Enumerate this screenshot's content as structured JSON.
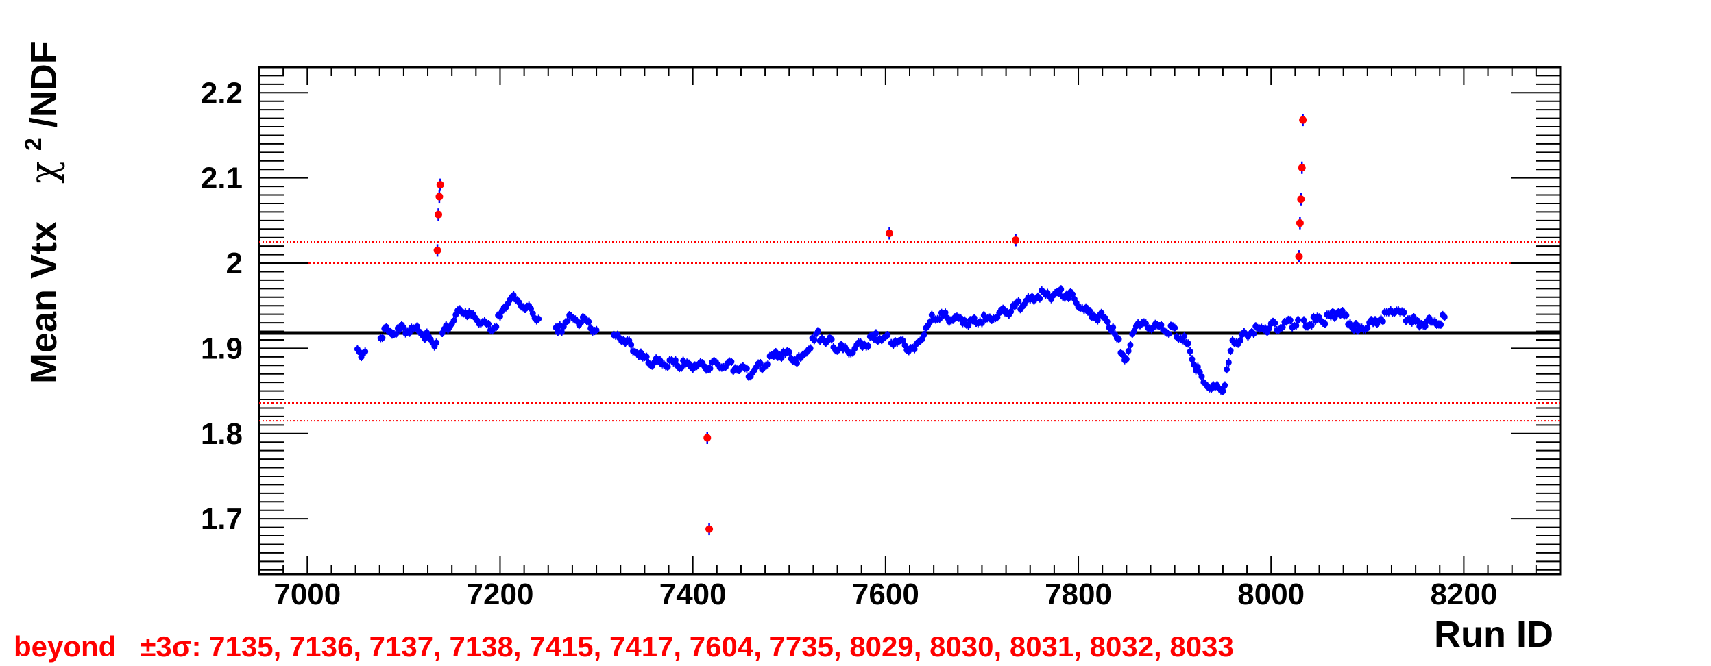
{
  "chart_data": {
    "type": "scatter",
    "xlabel": "Run ID",
    "ylabel_main": "Mean Vtx",
    "ylabel_chi": "χ",
    "ylabel_sup": "2",
    "ylabel_rest": "/NDF",
    "xlim": [
      6950,
      8300
    ],
    "ylim": [
      1.635,
      2.23
    ],
    "xticks": [
      7000,
      7200,
      7400,
      7600,
      7800,
      8000,
      8200
    ],
    "xtick_labels": [
      "7000",
      "7200",
      "7400",
      "7600",
      "7800",
      "8000",
      "8200"
    ],
    "yticks": [
      1.7,
      1.8,
      1.9,
      2.0,
      2.1,
      2.2
    ],
    "ytick_labels": [
      "1.7",
      "1.8",
      "1.9",
      "2",
      "2.1",
      "2.2"
    ],
    "mean_line": 1.918,
    "sigma3_lines": [
      1.836,
      2.0
    ],
    "outer_lines": [
      1.815,
      2.025
    ],
    "colors": {
      "points": "#0000ff",
      "outliers": "#ff0000",
      "mean": "#000000",
      "limits": "#ff0000"
    },
    "anchors": [
      [
        7052,
        1.897
      ],
      [
        7055,
        1.893
      ],
      [
        7080,
        1.92
      ],
      [
        7100,
        1.922
      ],
      [
        7120,
        1.92
      ],
      [
        7130,
        1.905
      ],
      [
        7150,
        1.93
      ],
      [
        7160,
        1.945
      ],
      [
        7180,
        1.932
      ],
      [
        7190,
        1.925
      ],
      [
        7200,
        1.935
      ],
      [
        7210,
        1.958
      ],
      [
        7220,
        1.955
      ],
      [
        7240,
        1.935
      ],
      [
        7260,
        1.918
      ],
      [
        7270,
        1.935
      ],
      [
        7290,
        1.93
      ],
      [
        7310,
        1.915
      ],
      [
        7330,
        1.912
      ],
      [
        7350,
        1.885
      ],
      [
        7400,
        1.88
      ],
      [
        7440,
        1.88
      ],
      [
        7460,
        1.87
      ],
      [
        7490,
        1.895
      ],
      [
        7510,
        1.885
      ],
      [
        7530,
        1.915
      ],
      [
        7560,
        1.895
      ],
      [
        7590,
        1.912
      ],
      [
        7610,
        1.91
      ],
      [
        7630,
        1.898
      ],
      [
        7650,
        1.938
      ],
      [
        7680,
        1.933
      ],
      [
        7700,
        1.932
      ],
      [
        7730,
        1.945
      ],
      [
        7760,
        1.962
      ],
      [
        7790,
        1.965
      ],
      [
        7810,
        1.94
      ],
      [
        7830,
        1.935
      ],
      [
        7850,
        1.885
      ],
      [
        7860,
        1.93
      ],
      [
        7900,
        1.92
      ],
      [
        7910,
        1.91
      ],
      [
        7930,
        1.86
      ],
      [
        7950,
        1.85
      ],
      [
        7960,
        1.905
      ],
      [
        7980,
        1.92
      ],
      [
        8000,
        1.925
      ],
      [
        8020,
        1.93
      ],
      [
        8040,
        1.93
      ],
      [
        8060,
        1.935
      ],
      [
        8070,
        1.945
      ],
      [
        8090,
        1.92
      ],
      [
        8100,
        1.925
      ],
      [
        8120,
        1.94
      ],
      [
        8130,
        1.945
      ],
      [
        8150,
        1.93
      ],
      [
        8165,
        1.93
      ],
      [
        8180,
        1.935
      ]
    ],
    "outliers": [
      {
        "run": 7135,
        "y": 2.015
      },
      {
        "run": 7136,
        "y": 2.057
      },
      {
        "run": 7137,
        "y": 2.078
      },
      {
        "run": 7138,
        "y": 2.092
      },
      {
        "run": 7415,
        "y": 1.795
      },
      {
        "run": 7417,
        "y": 1.688
      },
      {
        "run": 7604,
        "y": 2.035
      },
      {
        "run": 7735,
        "y": 2.027
      },
      {
        "run": 8029,
        "y": 2.008
      },
      {
        "run": 8030,
        "y": 2.047
      },
      {
        "run": 8031,
        "y": 2.075
      },
      {
        "run": 8032,
        "y": 2.112
      },
      {
        "run": 8033,
        "y": 2.168
      }
    ]
  },
  "note": {
    "prefix": "beyond   ±3σ: ",
    "runs": "7135, 7136, 7137, 7138, 7415, 7417, 7604, 7735, 8029, 8030, 8031, 8032, 8033"
  }
}
